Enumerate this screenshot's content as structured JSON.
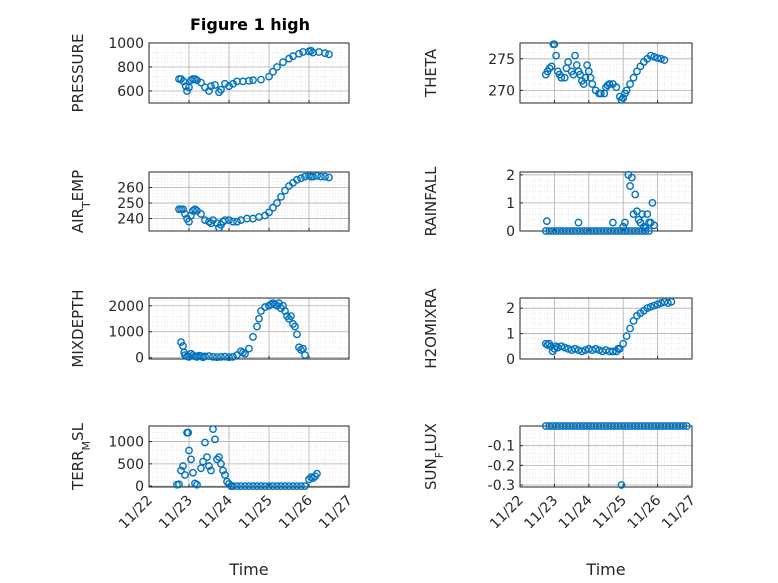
{
  "figure_title": "Figure 1 high",
  "colors": {
    "marker": "#0072BD",
    "axis": "#262626",
    "grid": "#b0b0b0"
  },
  "chart_data": [
    {
      "type": "scatter",
      "ylabel": "PRESSURE",
      "xlabel": "",
      "xlim": [
        0,
        5
      ],
      "ylim": [
        500,
        1000
      ],
      "yticks": [
        600,
        800,
        1000
      ],
      "ytick_labels": [
        "600",
        "800",
        "1000"
      ],
      "x": [
        0.75,
        0.8,
        0.86,
        0.92,
        0.95,
        1.0,
        1.05,
        1.1,
        1.15,
        1.2,
        1.3,
        1.4,
        1.5,
        1.55,
        1.65,
        1.75,
        1.8,
        1.9,
        2.0,
        2.1,
        2.2,
        2.35,
        2.5,
        2.6,
        2.8,
        3.0,
        3.1,
        3.2,
        3.35,
        3.5,
        3.6,
        3.75,
        3.85,
        4.0,
        4.05,
        4.1,
        4.25,
        4.4,
        4.5
      ],
      "y": [
        700,
        700,
        680,
        640,
        600,
        630,
        690,
        700,
        700,
        690,
        670,
        630,
        600,
        640,
        650,
        590,
        610,
        660,
        640,
        660,
        680,
        680,
        685,
        690,
        695,
        720,
        760,
        800,
        840,
        870,
        890,
        910,
        925,
        930,
        935,
        920,
        925,
        915,
        905
      ]
    },
    {
      "type": "scatter",
      "ylabel": "THETA",
      "xlabel": "",
      "xlim": [
        0,
        5
      ],
      "ylim": [
        268,
        277.5
      ],
      "yticks": [
        270,
        275
      ],
      "ytick_labels": [
        "270",
        "275"
      ],
      "x": [
        0.75,
        0.8,
        0.86,
        0.92,
        0.97,
        1.0,
        1.05,
        1.1,
        1.15,
        1.2,
        1.3,
        1.35,
        1.4,
        1.5,
        1.55,
        1.6,
        1.65,
        1.7,
        1.75,
        1.8,
        1.85,
        1.9,
        1.95,
        2.0,
        2.05,
        2.1,
        2.2,
        2.3,
        2.35,
        2.45,
        2.5,
        2.55,
        2.6,
        2.7,
        2.8,
        2.9,
        2.95,
        3.0,
        3.05,
        3.1,
        3.2,
        3.3,
        3.4,
        3.5,
        3.6,
        3.7,
        3.8,
        3.9,
        4.0,
        4.1,
        4.2
      ],
      "y": [
        272.5,
        273,
        273.5,
        273.8,
        277.3,
        277.3,
        275.5,
        273,
        272.5,
        272,
        272,
        273.5,
        274.5,
        273,
        272.5,
        275.5,
        274,
        273,
        272.5,
        271.5,
        271,
        272,
        274,
        273,
        272,
        271,
        270,
        269.5,
        269.5,
        269.5,
        270.5,
        270.8,
        271,
        271,
        270.5,
        269,
        268.5,
        268.8,
        269.5,
        270,
        271,
        272,
        273,
        273.8,
        274.5,
        275,
        275.5,
        275.3,
        275.1,
        275,
        274.8
      ]
    },
    {
      "type": "scatter",
      "ylabel": "AIR_TEMP",
      "xlabel": "",
      "xlim": [
        0,
        5
      ],
      "ylim": [
        232,
        270
      ],
      "yticks": [
        240,
        250,
        260
      ],
      "ytick_labels": [
        "240",
        "250",
        "260"
      ],
      "x": [
        0.75,
        0.8,
        0.85,
        0.9,
        0.95,
        1.0,
        1.05,
        1.1,
        1.15,
        1.2,
        1.3,
        1.4,
        1.5,
        1.55,
        1.6,
        1.7,
        1.75,
        1.8,
        1.85,
        1.9,
        2.0,
        2.1,
        2.2,
        2.3,
        2.45,
        2.6,
        2.75,
        2.9,
        3.0,
        3.1,
        3.2,
        3.3,
        3.4,
        3.5,
        3.6,
        3.7,
        3.8,
        3.9,
        4.0,
        4.05,
        4.1,
        4.2,
        4.3,
        4.4,
        4.5
      ],
      "y": [
        246,
        246,
        246,
        243,
        240,
        238,
        242,
        245,
        246,
        245,
        243,
        239,
        238,
        237,
        239,
        237,
        234,
        236,
        238,
        239,
        239,
        238,
        238,
        239,
        240,
        240,
        241,
        242,
        244,
        247,
        250,
        254,
        258,
        261,
        263,
        265,
        266,
        267,
        267.5,
        267,
        267,
        267.5,
        267,
        267,
        266.5
      ]
    },
    {
      "type": "scatter",
      "ylabel": "RAINFALL",
      "xlabel": "",
      "xlim": [
        0,
        5
      ],
      "ylim": [
        0,
        2.1
      ],
      "yticks": [
        0,
        1,
        2
      ],
      "ytick_labels": [
        "0",
        "1",
        "2"
      ],
      "x": [
        0.75,
        0.85,
        0.95,
        1.05,
        1.15,
        1.25,
        1.35,
        1.45,
        1.55,
        1.65,
        1.75,
        1.85,
        1.95,
        2.05,
        2.15,
        2.25,
        2.35,
        2.45,
        2.55,
        2.65,
        2.75,
        2.85,
        2.95,
        3.05,
        3.15,
        3.25,
        3.35,
        3.45,
        3.55,
        3.65,
        3.75,
        0.78,
        1.7,
        2.7,
        3.0,
        3.05,
        3.15,
        3.2,
        3.25,
        3.3,
        3.35,
        3.4,
        3.45,
        3.5,
        3.55,
        3.6,
        3.65,
        3.7,
        3.75,
        3.8,
        3.85,
        3.9
      ],
      "y": [
        0,
        0,
        0,
        0,
        0,
        0,
        0,
        0,
        0,
        0,
        0,
        0,
        0,
        0,
        0,
        0,
        0,
        0,
        0,
        0,
        0,
        0,
        0,
        0,
        0,
        0,
        0,
        0,
        0,
        0,
        0,
        0.35,
        0.3,
        0.3,
        0.15,
        0.3,
        2.0,
        1.6,
        1.9,
        0.6,
        1.3,
        0.7,
        0.4,
        0.3,
        0.6,
        0.15,
        0.1,
        0.6,
        0.3,
        0.3,
        1.0,
        0.2
      ]
    },
    {
      "type": "scatter",
      "ylabel": "MIXDEPTH",
      "xlabel": "",
      "xlim": [
        0,
        5
      ],
      "ylim": [
        -50,
        2300
      ],
      "yticks": [
        0,
        1000,
        2000
      ],
      "ytick_labels": [
        "0",
        "1000",
        "2000"
      ],
      "x": [
        0.8,
        0.85,
        0.88,
        0.9,
        0.95,
        1.0,
        1.05,
        1.1,
        1.15,
        1.2,
        1.25,
        1.3,
        1.35,
        1.4,
        1.5,
        1.6,
        1.7,
        1.8,
        1.9,
        2.0,
        2.1,
        2.2,
        2.3,
        2.35,
        2.4,
        2.5,
        2.6,
        2.7,
        2.75,
        2.8,
        2.9,
        3.0,
        3.05,
        3.1,
        3.15,
        3.2,
        3.25,
        3.3,
        3.35,
        3.4,
        3.45,
        3.5,
        3.55,
        3.6,
        3.65,
        3.7,
        3.75,
        3.8,
        3.85,
        3.9
      ],
      "y": [
        600,
        450,
        200,
        100,
        50,
        30,
        150,
        100,
        50,
        30,
        80,
        60,
        20,
        50,
        60,
        30,
        20,
        30,
        40,
        20,
        30,
        100,
        250,
        200,
        150,
        350,
        800,
        1200,
        1500,
        1800,
        1950,
        2000,
        2050,
        2100,
        2050,
        2000,
        2100,
        1900,
        2000,
        1800,
        1600,
        1500,
        1600,
        1300,
        1200,
        900,
        400,
        300,
        350,
        100
      ]
    },
    {
      "type": "scatter",
      "ylabel": "H2OMIXRA",
      "xlabel": "",
      "xlim": [
        0,
        5
      ],
      "ylim": [
        0,
        2.4
      ],
      "yticks": [
        0,
        1,
        2
      ],
      "ytick_labels": [
        "0",
        "1",
        "2"
      ],
      "x": [
        0.75,
        0.8,
        0.85,
        0.9,
        0.95,
        1.0,
        1.05,
        1.1,
        1.2,
        1.3,
        1.4,
        1.5,
        1.6,
        1.7,
        1.8,
        1.9,
        2.0,
        2.1,
        2.2,
        2.3,
        2.4,
        2.5,
        2.6,
        2.7,
        2.8,
        2.85,
        2.9,
        3.0,
        3.1,
        3.2,
        3.3,
        3.4,
        3.5,
        3.6,
        3.7,
        3.8,
        3.9,
        4.0,
        4.1,
        4.2,
        4.3,
        4.4
      ],
      "y": [
        0.6,
        0.55,
        0.6,
        0.5,
        0.3,
        0.4,
        0.5,
        0.45,
        0.5,
        0.45,
        0.4,
        0.35,
        0.4,
        0.35,
        0.3,
        0.35,
        0.4,
        0.35,
        0.4,
        0.35,
        0.3,
        0.35,
        0.3,
        0.3,
        0.3,
        0.4,
        0.4,
        0.6,
        0.9,
        1.2,
        1.5,
        1.7,
        1.8,
        1.9,
        2.0,
        2.05,
        2.1,
        2.15,
        2.2,
        2.25,
        2.2,
        2.25
      ]
    },
    {
      "type": "scatter",
      "ylabel": "TERR_MSL",
      "xlabel": "Time",
      "xlim": [
        0,
        5
      ],
      "ylim": [
        -20,
        1350
      ],
      "yticks": [
        0,
        500,
        1000
      ],
      "ytick_labels": [
        "0",
        "500",
        "1000"
      ],
      "xticks": [
        0,
        1,
        2,
        3,
        4,
        5
      ],
      "xtick_labels": [
        "11/22",
        "11/23",
        "11/24",
        "11/25",
        "11/26",
        "11/27"
      ],
      "x": [
        0.7,
        0.75,
        0.8,
        0.85,
        0.9,
        0.95,
        0.98,
        1.0,
        1.05,
        1.1,
        1.15,
        1.2,
        1.3,
        1.35,
        1.4,
        1.45,
        1.5,
        1.55,
        1.6,
        1.65,
        1.7,
        1.75,
        1.8,
        1.85,
        1.9,
        1.95,
        2.0,
        2.05,
        2.1,
        2.2,
        2.3,
        2.4,
        2.5,
        2.6,
        2.7,
        2.8,
        2.9,
        3.0,
        3.1,
        3.2,
        3.3,
        3.4,
        3.5,
        3.6,
        3.7,
        3.8,
        3.9,
        4.0,
        4.05,
        4.1,
        4.15,
        4.2
      ],
      "y": [
        30,
        40,
        350,
        450,
        250,
        1200,
        1200,
        800,
        600,
        300,
        60,
        30,
        400,
        550,
        980,
        650,
        450,
        350,
        1280,
        1050,
        600,
        650,
        500,
        350,
        250,
        100,
        50,
        0,
        0,
        0,
        0,
        0,
        0,
        0,
        0,
        0,
        0,
        0,
        0,
        0,
        0,
        0,
        0,
        0,
        0,
        0,
        0,
        150,
        200,
        180,
        220,
        280
      ]
    },
    {
      "type": "scatter",
      "ylabel": "SUN_FLUX",
      "xlabel": "Time",
      "xlim": [
        0,
        5
      ],
      "ylim": [
        -0.31,
        0
      ],
      "yticks": [
        -0.1,
        -0.2,
        -0.3
      ],
      "ytick_labels": [
        "-0.1",
        "-0.2",
        "-0.3"
      ],
      "xticks": [
        0,
        1,
        2,
        3,
        4,
        5
      ],
      "xtick_labels": [
        "11/22",
        "11/23",
        "11/24",
        "11/25",
        "11/26",
        "11/27"
      ],
      "x": [
        0.75,
        0.85,
        0.95,
        1.05,
        1.15,
        1.25,
        1.35,
        1.45,
        1.55,
        1.65,
        1.75,
        1.85,
        1.95,
        2.05,
        2.15,
        2.25,
        2.35,
        2.45,
        2.55,
        2.65,
        2.75,
        2.85,
        2.95,
        3.05,
        3.15,
        3.25,
        3.35,
        3.45,
        3.55,
        3.65,
        3.75,
        3.85,
        3.95,
        4.05,
        4.15,
        4.25,
        4.35,
        4.45,
        4.55,
        4.65,
        4.75,
        4.85,
        2.95
      ],
      "y": [
        0,
        0,
        0,
        0,
        0,
        0,
        0,
        0,
        0,
        0,
        0,
        0,
        0,
        0,
        0,
        0,
        0,
        0,
        0,
        0,
        0,
        0,
        0,
        0,
        0,
        0,
        0,
        0,
        0,
        0,
        0,
        0,
        0,
        0,
        0,
        0,
        0,
        0,
        0,
        0,
        0,
        0,
        -0.3
      ]
    }
  ]
}
